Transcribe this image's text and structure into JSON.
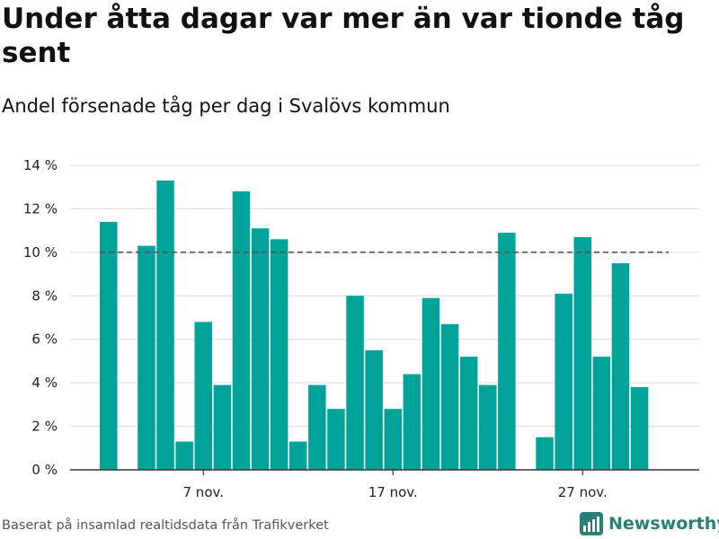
{
  "title": "Under åtta dagar var mer än var tionde tåg sent",
  "subtitle": "Andel försenade tåg per dag i Svalövs kommun",
  "source": "Baserat på insamlad realtidsdata från Trafikverket",
  "brand": {
    "name": "Newsworthy",
    "color": "#2a7f74"
  },
  "colors": {
    "bar": "#00a39a",
    "grid": "#d9d9d9",
    "axis": "#333333",
    "reference": "#555555"
  },
  "chart_data": {
    "type": "bar",
    "categories": [
      "2 nov.",
      "3 nov.",
      "4 nov.",
      "5 nov.",
      "6 nov.",
      "7 nov.",
      "8 nov.",
      "9 nov.",
      "10 nov.",
      "11 nov.",
      "12 nov.",
      "13 nov.",
      "14 nov.",
      "15 nov.",
      "16 nov.",
      "17 nov.",
      "18 nov.",
      "19 nov.",
      "20 nov.",
      "21 nov.",
      "22 nov.",
      "23 nov.",
      "24 nov.",
      "25 nov.",
      "26 nov.",
      "27 nov.",
      "28 nov.",
      "29 nov.",
      "30 nov."
    ],
    "values": [
      11.4,
      null,
      10.3,
      13.3,
      1.3,
      6.8,
      3.9,
      12.8,
      11.1,
      10.6,
      1.3,
      3.9,
      2.8,
      8.0,
      5.5,
      2.8,
      4.4,
      7.9,
      6.7,
      5.2,
      3.9,
      10.9,
      null,
      1.5,
      8.1,
      10.7,
      5.2,
      9.5,
      3.8
    ],
    "unit": "%",
    "ylim": [
      0,
      14
    ],
    "yticks": [
      0,
      2,
      4,
      6,
      8,
      10,
      12,
      14
    ],
    "ytick_labels": [
      "0 %",
      "2 %",
      "4 %",
      "6 %",
      "8 %",
      "10 %",
      "12 %",
      "14 %"
    ],
    "xtick_labels": [
      {
        "category": "7 nov.",
        "label": "7 nov."
      },
      {
        "category": "17 nov.",
        "label": "17 nov."
      },
      {
        "category": "27 nov.",
        "label": "27 nov."
      }
    ],
    "reference_line": {
      "value": 10,
      "style": "dashed"
    },
    "grid": true,
    "xlabel": "",
    "ylabel": ""
  }
}
